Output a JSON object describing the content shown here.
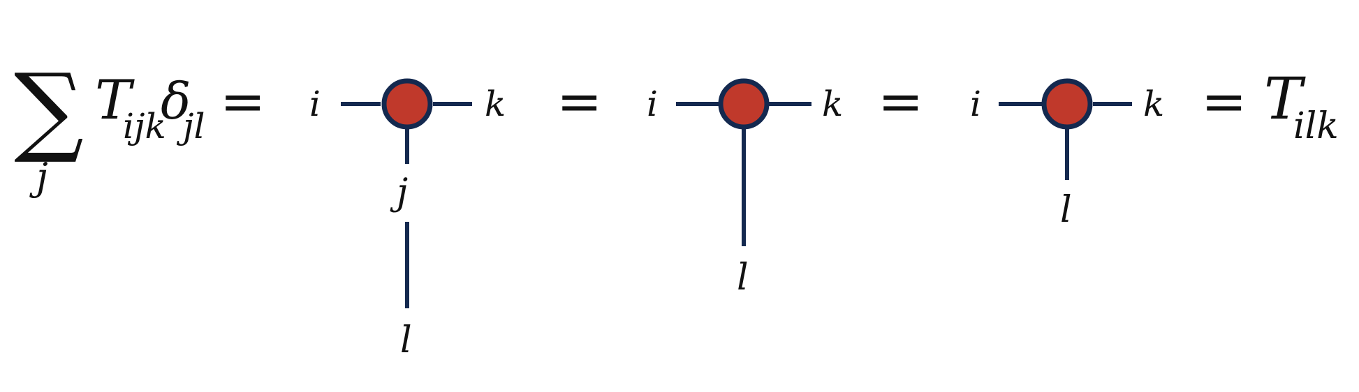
{
  "colors": {
    "line": "#14294f",
    "node_fill": "#c0392b",
    "node_stroke": "#14294f",
    "text": "#111111"
  },
  "lhs": {
    "sum_symbol": "∑",
    "sum_index": "j",
    "tensor": "T",
    "tensor_indices": "ijk",
    "delta": "δ",
    "delta_indices": "jl"
  },
  "equals": "=",
  "diagram1": {
    "left": "i",
    "right": "k",
    "mid": "j",
    "bottom": "l"
  },
  "diagram2": {
    "left": "i",
    "right": "k",
    "bottom": "l"
  },
  "diagram3": {
    "left": "i",
    "right": "k",
    "bottom": "l"
  },
  "rhs": {
    "tensor": "T",
    "tensor_indices": "ilk"
  }
}
